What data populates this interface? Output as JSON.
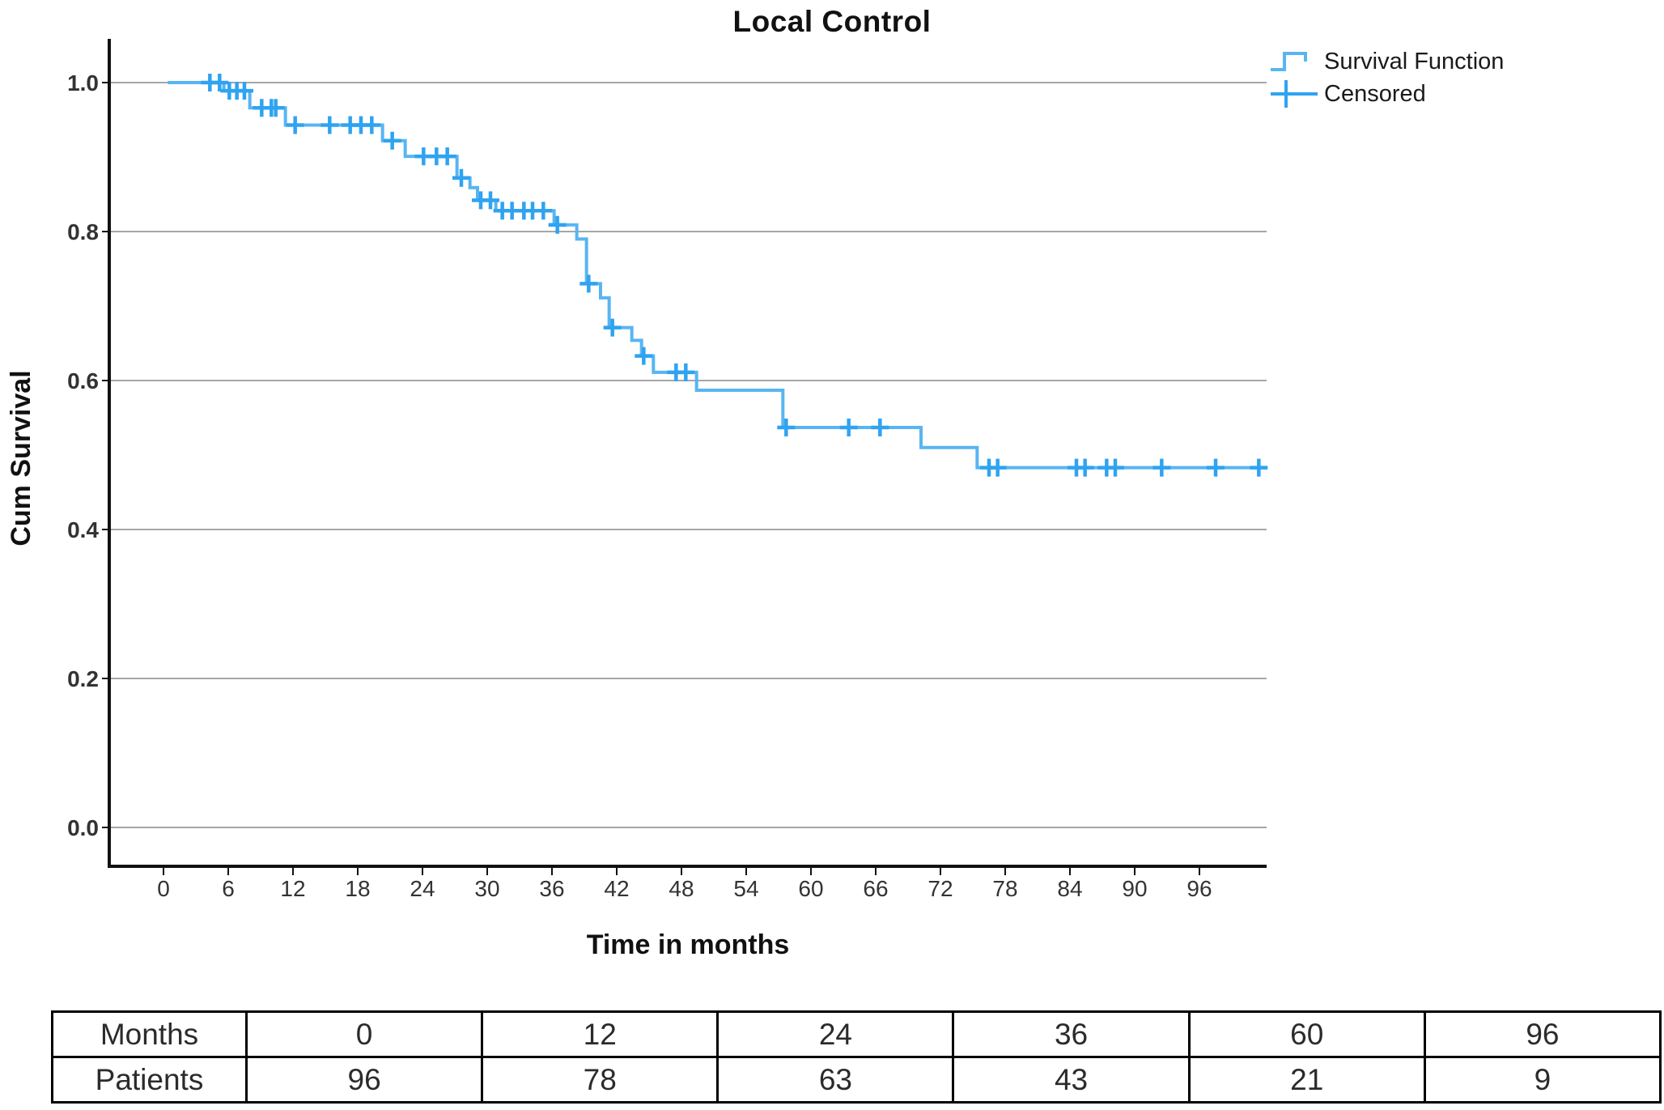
{
  "title": "Local Control",
  "y_axis": {
    "label": "Cum Survival",
    "tick_labels": [
      "1.0",
      "0.8",
      "0.6",
      "0.4",
      "0.2",
      "0.0"
    ]
  },
  "x_axis": {
    "label": "Time in months",
    "tick_labels": [
      "0",
      "6",
      "12",
      "18",
      "24",
      "30",
      "36",
      "42",
      "48",
      "54",
      "60",
      "66",
      "72",
      "78",
      "84",
      "90",
      "96"
    ]
  },
  "legend": {
    "survival_label": "Survival Function",
    "censored_label": "Censored"
  },
  "colors": {
    "curve": "#58B5F2",
    "censor": "#2FA3F1",
    "gridline": "#A6A6A6",
    "axis": "#111111",
    "tick_text": "#333333",
    "table_border": "#000000",
    "background": "#FFFFFF"
  },
  "chart_data": {
    "type": "line",
    "subtype": "kaplan-meier-step",
    "title": "Local Control",
    "xlabel": "Time in months",
    "ylabel": "Cum Survival",
    "xlim": [
      0,
      102.5
    ],
    "ylim": [
      0.0,
      1.05
    ],
    "grid": "horizontal",
    "legend_position": "top-right",
    "x_ticks": [
      0,
      6,
      12,
      18,
      24,
      30,
      36,
      42,
      48,
      54,
      60,
      66,
      72,
      78,
      84,
      90,
      96
    ],
    "y_ticks": [
      1.0,
      0.8,
      0.6,
      0.4,
      0.2,
      0.0
    ],
    "series": [
      {
        "name": "Survival Function",
        "style": "step-after",
        "points_time_survival": [
          [
            0.4,
            1.0
          ],
          [
            5.6,
            0.989
          ],
          [
            8.0,
            0.966
          ],
          [
            11.3,
            0.943
          ],
          [
            20.3,
            0.922
          ],
          [
            22.4,
            0.901
          ],
          [
            27.2,
            0.872
          ],
          [
            28.4,
            0.859
          ],
          [
            29.1,
            0.842
          ],
          [
            30.8,
            0.828
          ],
          [
            36.2,
            0.809
          ],
          [
            38.3,
            0.79
          ],
          [
            39.2,
            0.73
          ],
          [
            40.5,
            0.711
          ],
          [
            41.3,
            0.671
          ],
          [
            43.4,
            0.654
          ],
          [
            44.3,
            0.633
          ],
          [
            45.4,
            0.611
          ],
          [
            49.4,
            0.587
          ],
          [
            57.4,
            0.537
          ],
          [
            70.2,
            0.51
          ],
          [
            75.4,
            0.483
          ],
          [
            102.3,
            0.483
          ]
        ]
      }
    ],
    "censored_points_time_survival": [
      [
        4.3,
        1.0
      ],
      [
        5.2,
        1.0
      ],
      [
        6.1,
        0.989
      ],
      [
        6.8,
        0.989
      ],
      [
        7.5,
        0.989
      ],
      [
        9.1,
        0.966
      ],
      [
        10.0,
        0.966
      ],
      [
        10.4,
        0.966
      ],
      [
        12.2,
        0.943
      ],
      [
        15.4,
        0.943
      ],
      [
        17.3,
        0.943
      ],
      [
        18.3,
        0.943
      ],
      [
        19.3,
        0.943
      ],
      [
        21.2,
        0.922
      ],
      [
        24.1,
        0.901
      ],
      [
        25.3,
        0.901
      ],
      [
        26.3,
        0.901
      ],
      [
        27.6,
        0.872
      ],
      [
        29.4,
        0.842
      ],
      [
        30.3,
        0.842
      ],
      [
        31.4,
        0.828
      ],
      [
        32.3,
        0.828
      ],
      [
        33.4,
        0.828
      ],
      [
        34.2,
        0.828
      ],
      [
        35.2,
        0.828
      ],
      [
        36.5,
        0.809
      ],
      [
        39.4,
        0.73
      ],
      [
        41.6,
        0.671
      ],
      [
        44.5,
        0.633
      ],
      [
        47.5,
        0.611
      ],
      [
        48.4,
        0.611
      ],
      [
        57.7,
        0.537
      ],
      [
        63.5,
        0.537
      ],
      [
        66.4,
        0.537
      ],
      [
        76.5,
        0.483
      ],
      [
        77.3,
        0.483
      ],
      [
        84.6,
        0.483
      ],
      [
        85.4,
        0.483
      ],
      [
        87.4,
        0.483
      ],
      [
        88.2,
        0.483
      ],
      [
        92.5,
        0.483
      ],
      [
        97.5,
        0.483
      ],
      [
        101.5,
        0.483
      ]
    ]
  },
  "patients_table": {
    "row1_header": "Months",
    "row2_header": "Patients",
    "months": [
      "0",
      "12",
      "24",
      "36",
      "60",
      "96"
    ],
    "patients": [
      "96",
      "78",
      "63",
      "43",
      "21",
      "9"
    ]
  }
}
